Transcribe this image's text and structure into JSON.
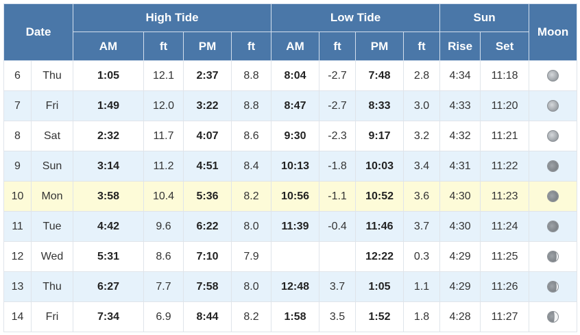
{
  "headers": {
    "date": "Date",
    "high_tide": "High Tide",
    "low_tide": "Low Tide",
    "sun": "Sun",
    "moon": "Moon",
    "am": "AM",
    "pm": "PM",
    "ft": "ft",
    "rise": "Rise",
    "set": "Set"
  },
  "rows": [
    {
      "day": "6",
      "dow": "Thu",
      "high_am": "1:05",
      "high_am_ft": "12.1",
      "high_pm": "2:37",
      "high_pm_ft": "8.8",
      "low_am": "8:04",
      "low_am_ft": "-2.7",
      "low_pm": "7:48",
      "low_pm_ft": "2.8",
      "rise": "4:34",
      "set": "11:18",
      "moon": "full-moon-icon"
    },
    {
      "day": "7",
      "dow": "Fri",
      "high_am": "1:49",
      "high_am_ft": "12.0",
      "high_pm": "3:22",
      "high_pm_ft": "8.8",
      "low_am": "8:47",
      "low_am_ft": "-2.7",
      "low_pm": "8:33",
      "low_pm_ft": "3.0",
      "rise": "4:33",
      "set": "11:20",
      "moon": "full-moon-icon"
    },
    {
      "day": "8",
      "dow": "Sat",
      "high_am": "2:32",
      "high_am_ft": "11.7",
      "high_pm": "4:07",
      "high_pm_ft": "8.6",
      "low_am": "9:30",
      "low_am_ft": "-2.3",
      "low_pm": "9:17",
      "low_pm_ft": "3.2",
      "rise": "4:32",
      "set": "11:21",
      "moon": "full-moon-icon"
    },
    {
      "day": "9",
      "dow": "Sun",
      "high_am": "3:14",
      "high_am_ft": "11.2",
      "high_pm": "4:51",
      "high_pm_ft": "8.4",
      "low_am": "10:13",
      "low_am_ft": "-1.8",
      "low_pm": "10:03",
      "low_pm_ft": "3.4",
      "rise": "4:31",
      "set": "11:22",
      "moon": "waning-gibbous-moon-icon"
    },
    {
      "day": "10",
      "dow": "Mon",
      "high_am": "3:58",
      "high_am_ft": "10.4",
      "high_pm": "5:36",
      "high_pm_ft": "8.2",
      "low_am": "10:56",
      "low_am_ft": "-1.1",
      "low_pm": "10:52",
      "low_pm_ft": "3.6",
      "rise": "4:30",
      "set": "11:23",
      "moon": "waning-gibbous-moon-icon"
    },
    {
      "day": "11",
      "dow": "Tue",
      "high_am": "4:42",
      "high_am_ft": "9.6",
      "high_pm": "6:22",
      "high_pm_ft": "8.0",
      "low_am": "11:39",
      "low_am_ft": "-0.4",
      "low_pm": "11:46",
      "low_pm_ft": "3.7",
      "rise": "4:30",
      "set": "11:24",
      "moon": "waning-gibbous-moon-icon"
    },
    {
      "day": "12",
      "dow": "Wed",
      "high_am": "5:31",
      "high_am_ft": "8.6",
      "high_pm": "7:10",
      "high_pm_ft": "7.9",
      "low_am": "",
      "low_am_ft": "",
      "low_pm": "12:22",
      "low_pm_ft": "0.3",
      "rise": "4:29",
      "set": "11:25",
      "moon": "waning-gibbous-moon-icon"
    },
    {
      "day": "13",
      "dow": "Thu",
      "high_am": "6:27",
      "high_am_ft": "7.7",
      "high_pm": "7:58",
      "high_pm_ft": "8.0",
      "low_am": "12:48",
      "low_am_ft": "3.7",
      "low_pm": "1:05",
      "low_pm_ft": "1.1",
      "rise": "4:29",
      "set": "11:26",
      "moon": "waning-gibbous-moon-icon"
    },
    {
      "day": "14",
      "dow": "Fri",
      "high_am": "7:34",
      "high_am_ft": "6.9",
      "high_pm": "8:44",
      "high_pm_ft": "8.2",
      "low_am": "1:58",
      "low_am_ft": "3.5",
      "low_pm": "1:52",
      "low_pm_ft": "1.8",
      "rise": "4:28",
      "set": "11:27",
      "moon": "last-quarter-moon-icon"
    }
  ],
  "colors": {
    "header_bg": "#4a77a8",
    "row_alt_bg": "#e6f2fb",
    "today_bg": "#fdfbd8"
  }
}
